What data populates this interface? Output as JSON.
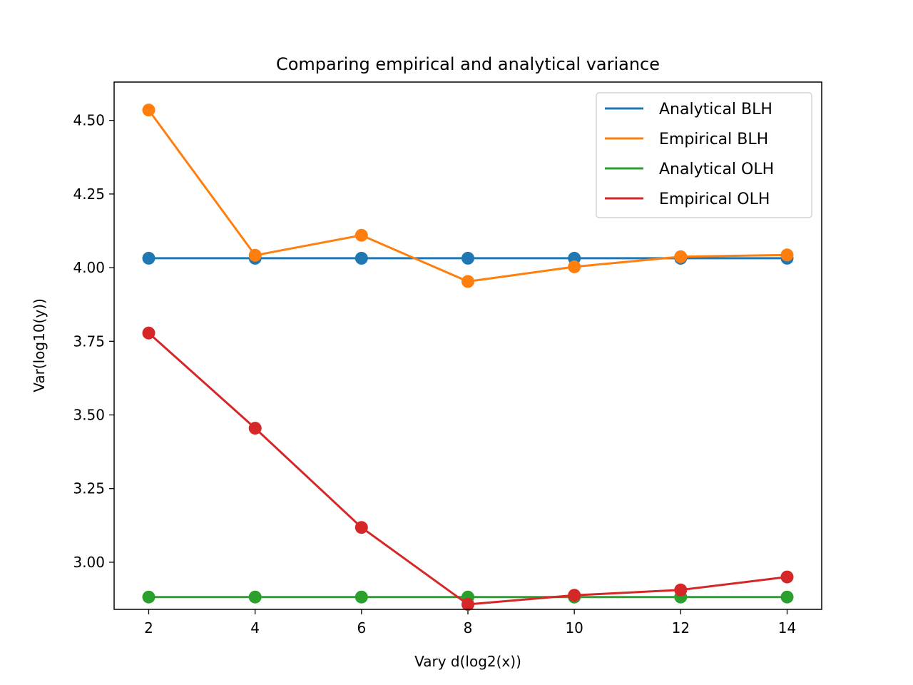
{
  "chart_data": {
    "type": "line",
    "title": "Comparing empirical and analytical variance",
    "xlabel": "Vary d(log2(x))",
    "ylabel": "Var(log10(y))",
    "xlim": [
      1.35,
      14.65
    ],
    "ylim": [
      2.84,
      4.63
    ],
    "x_ticks": [
      2,
      4,
      6,
      8,
      10,
      12,
      14
    ],
    "y_ticks": [
      3.0,
      3.25,
      3.5,
      3.75,
      4.0,
      4.25,
      4.5
    ],
    "x_tick_labels": [
      "2",
      "4",
      "6",
      "8",
      "10",
      "12",
      "14"
    ],
    "y_tick_labels": [
      "3.00",
      "3.25",
      "3.50",
      "3.75",
      "4.00",
      "4.25",
      "4.50"
    ],
    "x": [
      2,
      4,
      6,
      8,
      10,
      12,
      14
    ],
    "grid": false,
    "legend_position": "top-right",
    "series": [
      {
        "name": "Analytical BLH",
        "color": "#1f77b4",
        "values": [
          4.032,
          4.032,
          4.032,
          4.032,
          4.032,
          4.032,
          4.032
        ]
      },
      {
        "name": "Empirical BLH",
        "color": "#ff7f0e",
        "values": [
          4.535,
          4.042,
          4.11,
          3.953,
          4.003,
          4.037,
          4.043
        ]
      },
      {
        "name": "Analytical OLH",
        "color": "#2ca02c",
        "values": [
          2.882,
          2.882,
          2.882,
          2.882,
          2.882,
          2.882,
          2.882
        ]
      },
      {
        "name": "Empirical OLH",
        "color": "#d62728",
        "values": [
          3.778,
          3.455,
          3.118,
          2.857,
          2.888,
          2.906,
          2.95
        ]
      }
    ]
  }
}
